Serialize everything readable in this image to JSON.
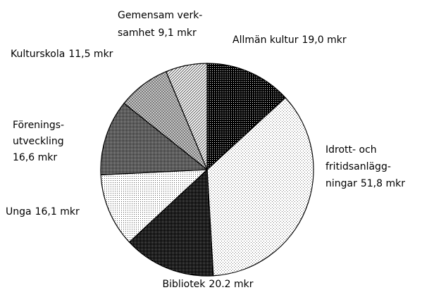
{
  "chart_data": {
    "type": "pie",
    "categories": [
      [
        "Allmän kultur"
      ],
      [
        "Idrott- och",
        "fritidsanlägg-",
        "ningar"
      ],
      [
        "Bibliotek"
      ],
      [
        "Unga"
      ],
      [
        "Förenings-",
        "utveckling"
      ],
      [
        "Kulturskola"
      ],
      [
        "Gemensam verk-",
        "samhet"
      ]
    ],
    "values": [
      19.0,
      51.8,
      20.2,
      16.1,
      16.6,
      11.5,
      9.1
    ],
    "value_labels": [
      "19,0 mkr",
      "51,8 mkr",
      "20.2 mkr",
      "16,1 mkr",
      "16,6 mkr",
      "11,5 mkr",
      "9,1 mkr"
    ]
  }
}
